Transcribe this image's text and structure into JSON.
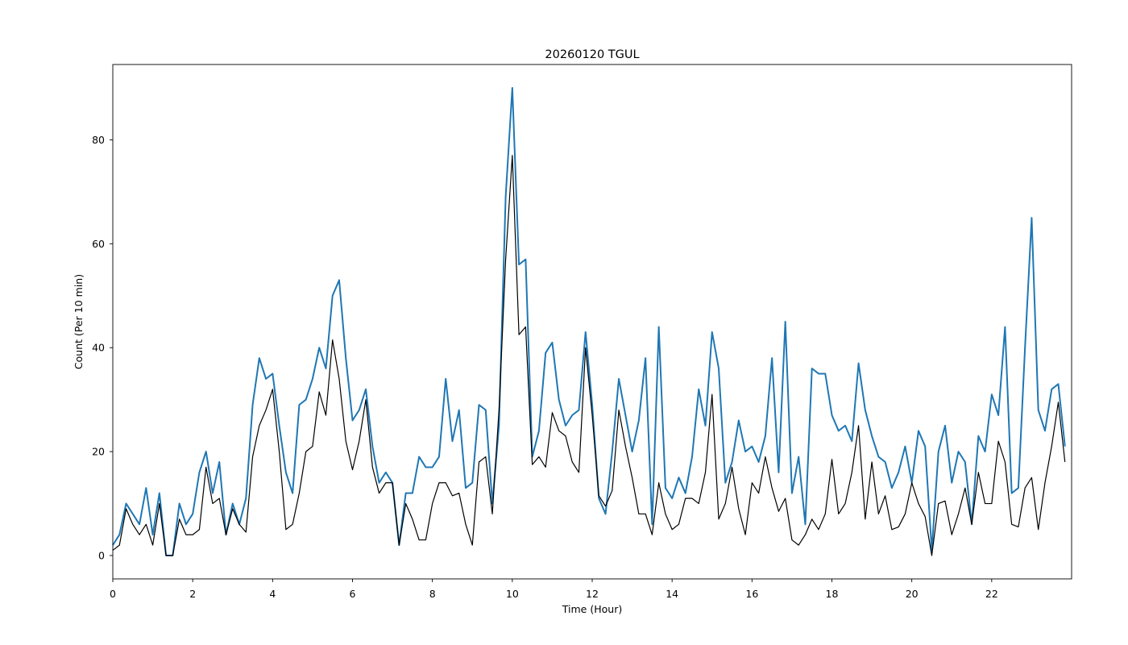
{
  "chart_data": {
    "type": "line",
    "title": "20260120 TGUL",
    "xlabel": "Time (Hour)",
    "ylabel": "Count (Per 10 min)",
    "xlim": [
      0,
      24
    ],
    "ylim": [
      -4.5,
      94.5
    ],
    "xticks": [
      0,
      2,
      4,
      6,
      8,
      10,
      12,
      14,
      16,
      18,
      20,
      22
    ],
    "yticks": [
      0,
      20,
      40,
      60,
      80
    ],
    "x_step_hours": 0.16667,
    "grid": false,
    "legend": "none",
    "series": [
      {
        "color": "#1f77b4",
        "values": [
          2,
          4,
          10,
          8,
          6,
          13,
          4,
          12,
          0,
          0,
          10,
          6,
          8,
          16,
          20,
          12,
          18,
          4,
          10,
          6,
          11,
          29,
          38,
          34,
          35,
          25,
          16,
          12,
          29,
          30,
          34,
          40,
          36,
          50,
          53,
          38,
          26,
          28,
          32,
          21,
          14,
          16,
          14,
          2,
          12,
          12,
          19,
          17,
          17,
          19,
          34,
          22,
          28,
          13,
          14,
          29,
          28,
          10,
          25,
          69,
          90,
          56,
          57,
          19,
          24,
          39,
          41,
          30,
          25,
          27,
          28,
          43,
          29,
          11,
          8,
          20,
          34,
          27,
          20,
          26,
          38,
          6,
          44,
          13,
          11,
          15,
          12,
          19,
          32,
          25,
          43,
          36,
          14,
          18,
          26,
          20,
          21,
          18,
          23,
          38,
          16,
          45,
          12,
          19,
          6,
          36,
          35,
          35,
          27,
          24,
          25,
          22,
          37,
          28,
          23,
          19,
          18,
          13,
          16,
          21,
          14,
          24,
          21,
          1,
          20,
          25,
          14,
          20,
          18,
          6,
          23,
          20,
          31,
          27,
          44,
          12,
          13,
          40,
          65,
          28,
          24,
          32,
          33,
          21
        ]
      },
      {
        "color": "#000000",
        "values": [
          1,
          2,
          9,
          6,
          4,
          6,
          2,
          10,
          0,
          0,
          7,
          4,
          4,
          5,
          17,
          10,
          11,
          4,
          9,
          6,
          4.5,
          19,
          25,
          28,
          32,
          20,
          5,
          6,
          12,
          20,
          21,
          31.5,
          27,
          41.5,
          34,
          22,
          16.5,
          22,
          30,
          17,
          12,
          14,
          14,
          2,
          10,
          7,
          3,
          3,
          10,
          14,
          14,
          11.5,
          12,
          6,
          2,
          18,
          19,
          8,
          28,
          57,
          77,
          42.5,
          44,
          17.5,
          19,
          17,
          27.5,
          24,
          23,
          18,
          16,
          40,
          27,
          11.5,
          9.5,
          12.5,
          28,
          21,
          15,
          8,
          8,
          4,
          14,
          8,
          5,
          6,
          11,
          11,
          10,
          16,
          31,
          7,
          10,
          17,
          9,
          4,
          14,
          12,
          19,
          13,
          8.5,
          11,
          3,
          2,
          4,
          7,
          5,
          8,
          18.5,
          8,
          10,
          16,
          25,
          7,
          18,
          8,
          11.5,
          5,
          5.5,
          8,
          14,
          10,
          7.5,
          0,
          10,
          10.5,
          4,
          8,
          13,
          6,
          16,
          10,
          10,
          22,
          18,
          6,
          5.5,
          13,
          15,
          5,
          14,
          21,
          29.5,
          18
        ]
      }
    ]
  }
}
